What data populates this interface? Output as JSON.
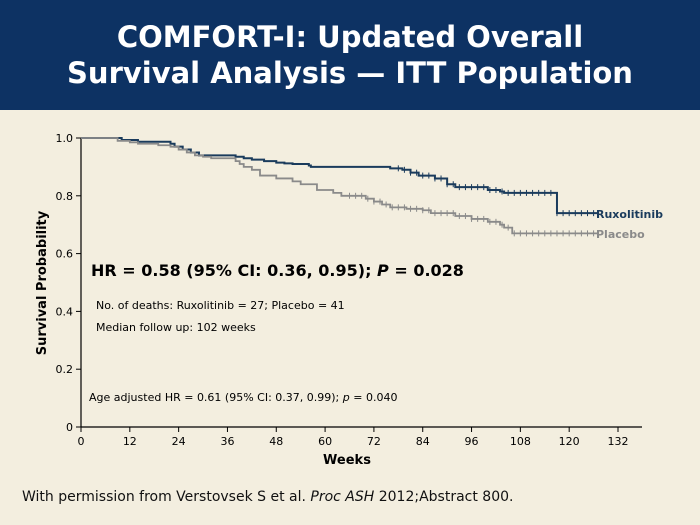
{
  "header": {
    "title_line1": "COMFORT-I: Updated Overall",
    "title_line2": "Survival Analysis — ITT Population"
  },
  "footer": {
    "prefix": "With permission from Verstovsek S et al. ",
    "journal": "Proc ASH",
    "suffix": " 2012;Abstract 800."
  },
  "colors": {
    "header_bg": "#0d3263",
    "background": "#f3eedf",
    "ruxolitinib": "#1a3b5c",
    "placebo": "#8a8a8a"
  },
  "chart_data": {
    "type": "line",
    "subtype": "kaplan-meier step curve",
    "xlabel": "Weeks",
    "ylabel": "Survival Probability",
    "xlim": [
      0,
      132
    ],
    "ylim": [
      0,
      1.0
    ],
    "x_ticks": [
      0,
      12,
      24,
      36,
      48,
      60,
      72,
      84,
      96,
      108,
      120,
      132
    ],
    "y_ticks": [
      0,
      0.2,
      0.4,
      0.6,
      0.8,
      1.0
    ],
    "y_tick_labels": [
      "0",
      "0.2",
      "0.4",
      "0.6",
      "0.8",
      "1.0"
    ],
    "grid": false,
    "series": [
      {
        "name": "Ruxolitinib",
        "color": "#1a3b5c",
        "x": [
          0,
          10,
          14,
          22,
          23,
          25,
          27,
          29,
          38,
          40,
          42,
          45,
          48,
          50,
          52,
          56,
          56.5,
          58,
          76,
          79,
          81,
          83,
          87,
          90,
          92,
          97,
          100,
          103,
          104,
          117,
          118,
          127
        ],
        "y": [
          1.0,
          0.993,
          0.987,
          0.98,
          0.97,
          0.96,
          0.95,
          0.94,
          0.935,
          0.93,
          0.925,
          0.92,
          0.915,
          0.912,
          0.91,
          0.905,
          0.9,
          0.9,
          0.895,
          0.89,
          0.88,
          0.87,
          0.86,
          0.84,
          0.83,
          0.83,
          0.82,
          0.815,
          0.81,
          0.74,
          0.74,
          0.74
        ]
      },
      {
        "name": "Placebo",
        "color": "#8a8a8a",
        "x": [
          0,
          9,
          12,
          14,
          19,
          22,
          24,
          26,
          28,
          30,
          32,
          38,
          39,
          40,
          42,
          44,
          48,
          52,
          54,
          58,
          62,
          64,
          70,
          72,
          74,
          76,
          80,
          84,
          86,
          92,
          96,
          100,
          103,
          104,
          106,
          127
        ],
        "y": [
          1.0,
          0.99,
          0.985,
          0.98,
          0.975,
          0.97,
          0.96,
          0.95,
          0.94,
          0.935,
          0.93,
          0.92,
          0.91,
          0.9,
          0.89,
          0.87,
          0.86,
          0.85,
          0.84,
          0.82,
          0.81,
          0.8,
          0.79,
          0.78,
          0.77,
          0.76,
          0.755,
          0.75,
          0.74,
          0.73,
          0.72,
          0.71,
          0.7,
          0.69,
          0.67,
          0.67
        ]
      }
    ],
    "annotations": {
      "hr_prefix": "HR = 0.58 (95% CI: 0.36, 0.95); ",
      "hr_p": "P",
      "hr_suffix": " = 0.028",
      "deaths": "No. of deaths: Ruxolitinib = 27; Placebo = 41",
      "followup": "Median follow up: 102 weeks",
      "age_prefix": "Age adjusted HR = 0.61 (95% CI: 0.37, 0.99); ",
      "age_p": "p",
      "age_suffix": " = 0.040"
    }
  }
}
